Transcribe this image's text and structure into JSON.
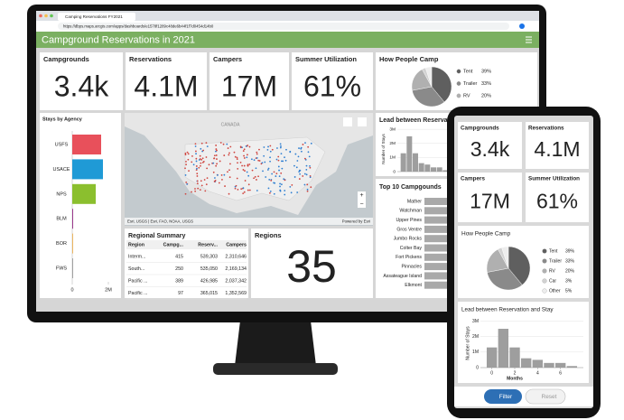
{
  "browser": {
    "tab": "Camping Reservations FY2021",
    "url": "https://dbps.maps.arcgis.com/apps/dashboards/e1578f1289c48de6b44f1f7d0454d14b0"
  },
  "title": "Campground Reservations in 2021",
  "indicators": [
    {
      "label": "Campgrounds",
      "value": "3.4k"
    },
    {
      "label": "Reservations",
      "value": "4.1M"
    },
    {
      "label": "Campers",
      "value": "17M"
    },
    {
      "label": "Summer Utilization",
      "value": "61%"
    }
  ],
  "how_people_camp": {
    "title": "How People Camp",
    "categories": [
      "Tent",
      "Trailer",
      "RV",
      "Car",
      "Other"
    ],
    "values": [
      39,
      33,
      20,
      3,
      5
    ],
    "value_labels": [
      "39%",
      "33%",
      "20%",
      "3%",
      "5%"
    ],
    "colors": [
      "#5f5f5f",
      "#8a8a8a",
      "#b0b0b0",
      "#d2d2d2",
      "#ededed"
    ]
  },
  "stays_by_agency": {
    "title": "Stays by Agency",
    "categories": [
      "USFS",
      "USACE",
      "NPS",
      "BLM",
      "BOR",
      "FWS"
    ],
    "values": [
      1600000,
      1700000,
      1300000,
      50000,
      30000,
      15000
    ],
    "colors": [
      "#e8505b",
      "#1f9ad6",
      "#8bbf2e",
      "#9b3a8c",
      "#e8a33a",
      "#8a8a8a"
    ],
    "xlim": [
      0,
      2000000
    ],
    "xticks": [
      0,
      {
        "value": 2000000,
        "label": "2M"
      }
    ]
  },
  "map": {
    "label": "CANADA",
    "attribution": "Esri, USGS | Esri, FAO, NOAA, USGS",
    "powered_by": "Powered by Esri"
  },
  "lead_time": {
    "title": "Lead between Reservation and Stay",
    "y_label": "Number of Stays",
    "x_label": "Months",
    "x": [
      0,
      1,
      2,
      3,
      4,
      5,
      6,
      7
    ],
    "values": [
      1300000,
      2500000,
      1300000,
      600000,
      500000,
      300000,
      300000,
      100000
    ],
    "xlim": [
      -1,
      8
    ],
    "xticks": [
      0,
      2,
      4,
      6
    ],
    "ylim": [
      0,
      3200000
    ],
    "yticks": [
      {
        "value": 0,
        "label": "0"
      },
      {
        "value": 1000000,
        "label": "1M"
      },
      {
        "value": 2000000,
        "label": "2M"
      },
      {
        "value": 3000000,
        "label": "3M"
      }
    ]
  },
  "top_campgrounds": {
    "title": "Top 10 Campgounds",
    "names": [
      "Mather",
      "Watchman",
      "Upper Pines",
      "Gros Ventre",
      "Jumbo Rocks",
      "Colter Bay",
      "Fort Pickens",
      "Pinnacles",
      "Assateague Island",
      "Elkmont"
    ]
  },
  "regional_summary": {
    "title": "Regional Summary",
    "columns": [
      "Region",
      "Campg...",
      "Reserv...",
      "Campers"
    ],
    "rows": [
      [
        "Interm...",
        "415",
        "539,303",
        "2,310,646"
      ],
      [
        "South...",
        "250",
        "535,050",
        "2,169,134"
      ],
      [
        "Pacific ...",
        "389",
        "426,985",
        "2,037,342"
      ],
      [
        "Pacific ...",
        "97",
        "365,015",
        "1,352,569"
      ]
    ]
  },
  "regions": {
    "label": "Regions",
    "value": "35"
  },
  "buttons": {
    "filter": "Filter",
    "reset": "Reset"
  }
}
